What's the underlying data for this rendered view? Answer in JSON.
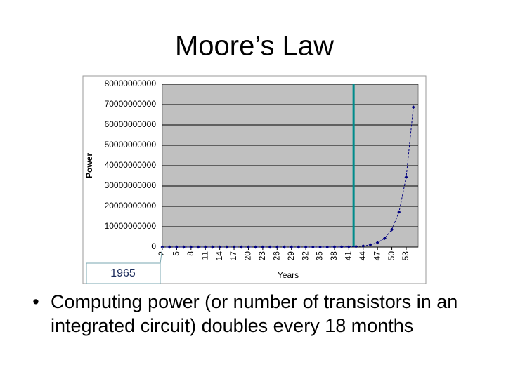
{
  "title": "Moore’s Law",
  "chart_data": {
    "type": "line",
    "x_label": "Years",
    "y_label": "Power",
    "x": [
      2,
      3.5,
      5,
      6.5,
      8,
      9.5,
      11,
      12.5,
      14,
      15.5,
      17,
      18.5,
      20,
      21.5,
      23,
      24.5,
      26,
      27.5,
      29,
      30.5,
      32,
      33.5,
      35,
      36.5,
      38,
      39.5,
      41,
      42.5,
      44,
      45.5,
      47,
      48.5,
      50,
      51.5,
      53,
      54.5
    ],
    "series": [
      {
        "color": "#000080",
        "values": [
          2,
          4,
          8,
          16,
          32,
          64,
          128,
          256,
          512,
          1024,
          2048,
          4096,
          8192,
          16384,
          32768,
          65536,
          131072,
          262144,
          524288,
          1048576,
          2097152,
          4194304,
          8388608,
          16777216,
          33554432,
          67108864,
          134217728,
          268435456,
          536870912,
          1073741824,
          2147483648,
          4294967296,
          8589934592,
          17179869184,
          34359738368,
          68719476736
        ]
      }
    ],
    "xlim": [
      2,
      55.5
    ],
    "xticks": [
      2,
      5,
      8,
      11,
      14,
      17,
      20,
      23,
      26,
      29,
      32,
      35,
      38,
      41,
      44,
      47,
      50,
      53
    ],
    "ylim": [
      0,
      80000000000
    ],
    "yticks": [
      0,
      10000000000,
      20000000000,
      30000000000,
      40000000000,
      50000000000,
      60000000000,
      70000000000,
      80000000000
    ],
    "grid": true,
    "plot_background": "#c0c0c0",
    "vline": {
      "x": 42,
      "color": "#008b8b"
    },
    "annotation": {
      "text": "1965",
      "x": 2,
      "y": 0
    }
  },
  "bullet": "Computing power (or number of transistors in an integrated circuit) doubles every 18 months"
}
